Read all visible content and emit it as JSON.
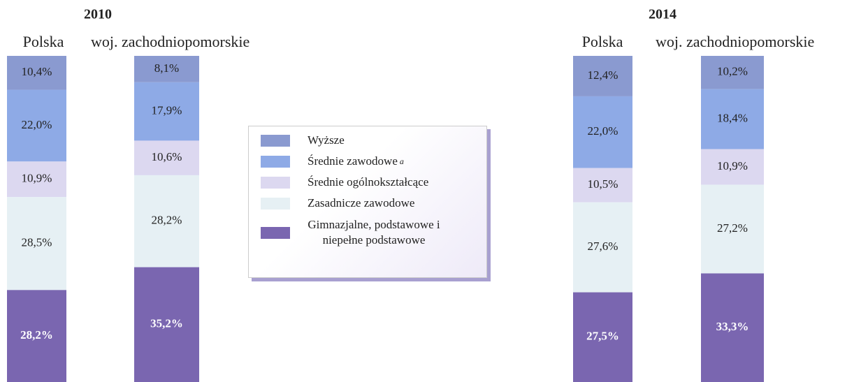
{
  "chart_data": [
    {
      "type": "bar",
      "stacked": true,
      "title": "2010",
      "categories": [
        "Polska",
        "woj. zachodniopomorskie"
      ],
      "ylim": [
        0,
        100
      ],
      "series": [
        {
          "name": "Wyższe",
          "color": "#8a9ad0",
          "values": [
            10.4,
            8.1
          ],
          "value_labels": [
            "10,4%",
            "8,1%"
          ]
        },
        {
          "name": "Średnie zawodowe",
          "note_mark": "a",
          "color": "#8eaae6",
          "values": [
            22.0,
            17.9
          ],
          "value_labels": [
            "22,0%",
            "17,9%"
          ]
        },
        {
          "name": "Średnie ogólnokształcące",
          "color": "#dcd8f0",
          "values": [
            10.9,
            10.6
          ],
          "value_labels": [
            "10,9%",
            "10,6%"
          ]
        },
        {
          "name": "Zasadnicze zawodowe",
          "color": "#e6f0f4",
          "values": [
            28.5,
            28.2
          ],
          "value_labels": [
            "28,5%",
            "28,2%"
          ]
        },
        {
          "name": "Gimnazjalne, podstawowe i niepełne podstawowe",
          "color": "#7a66b0",
          "values": [
            28.2,
            35.2
          ],
          "value_labels": [
            "28,2%",
            "35,2%"
          ]
        }
      ]
    },
    {
      "type": "bar",
      "stacked": true,
      "title": "2014",
      "categories": [
        "Polska",
        "woj. zachodniopomorskie"
      ],
      "ylim": [
        0,
        100
      ],
      "series": [
        {
          "name": "Wyższe",
          "color": "#8a9ad0",
          "values": [
            12.4,
            10.2
          ],
          "value_labels": [
            "12,4%",
            "10,2%"
          ]
        },
        {
          "name": "Średnie zawodowe",
          "color": "#8eaae6",
          "values": [
            22.0,
            18.4
          ],
          "value_labels": [
            "22,0%",
            "18,4%"
          ]
        },
        {
          "name": "Średnie ogólnokształcące",
          "color": "#dcd8f0",
          "values": [
            10.5,
            10.9
          ],
          "value_labels": [
            "10,5%",
            "10,9%"
          ]
        },
        {
          "name": "Zasadnicze zawodowe",
          "color": "#e6f0f4",
          "values": [
            27.6,
            27.2
          ],
          "value_labels": [
            "27,6%",
            "27,2%"
          ]
        },
        {
          "name": "Gimnazjalne, podstawowe i niepełne podstawowe",
          "color": "#7a66b0",
          "values": [
            27.5,
            33.3
          ],
          "value_labels": [
            "27,5%",
            "33,3%"
          ]
        }
      ]
    }
  ]
}
